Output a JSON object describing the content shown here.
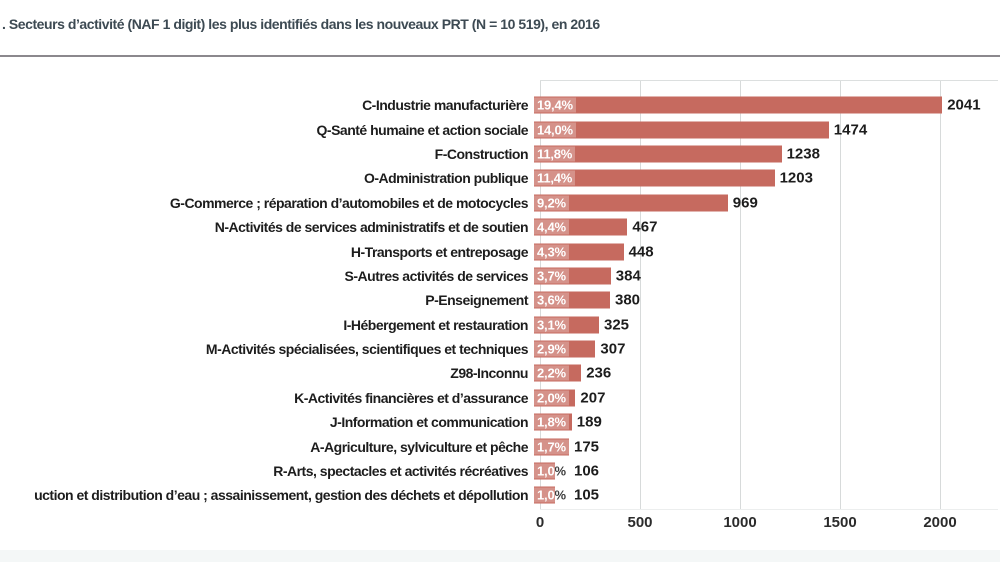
{
  "chart_data": {
    "type": "bar",
    "orientation": "horizontal",
    "title": ". Secteurs d’activité (NAF 1 digit) les plus identifiés dans les nouveaux PRT (N = 10 519), en 2016",
    "categories": [
      "C-Industrie manufacturière",
      "Q-Santé humaine et action sociale",
      "F-Construction",
      "O-Administration publique",
      "G-Commerce ; réparation d’automobiles et de motocycles",
      "N-Activités de services administratifs et de soutien",
      "H-Transports et entreposage",
      "S-Autres activités de services",
      "P-Enseignement",
      "I-Hébergement et restauration",
      "M-Activités spécialisées, scientifiques et techniques",
      "Z98-Inconnu",
      "K-Activités financières et d’assurance",
      "J-Information et communication",
      "A-Agriculture, sylviculture et pêche",
      "R-Arts, spectacles et activités récréatives",
      "uction et distribution d’eau ; assainissement, gestion des déchets et dépollution"
    ],
    "values": [
      2041,
      1474,
      1238,
      1203,
      969,
      467,
      448,
      384,
      380,
      325,
      307,
      236,
      207,
      189,
      175,
      106,
      105
    ],
    "value_labels": [
      "2041",
      "1474",
      "1238",
      "1203",
      "969",
      "467",
      "448",
      "384",
      "380",
      "325",
      "307",
      "236",
      "207",
      "189",
      "175",
      "106",
      "105"
    ],
    "pct_labels": [
      "19,4%",
      "14,0%",
      "11,8%",
      "11,4%",
      "9,2%",
      "4,4%",
      "4,3%",
      "3,7%",
      "3,6%",
      "3,1%",
      "2,9%",
      "2,2%",
      "2,0%",
      "1,8%",
      "1,7%",
      "1,0%",
      "1,0%"
    ],
    "x_ticks": [
      0,
      500,
      1000,
      1500,
      2000
    ],
    "xlim": [
      0,
      2290
    ],
    "grid": true,
    "legend": false,
    "bar_color": "#c66a5f",
    "grid_color": "#d7dada"
  }
}
